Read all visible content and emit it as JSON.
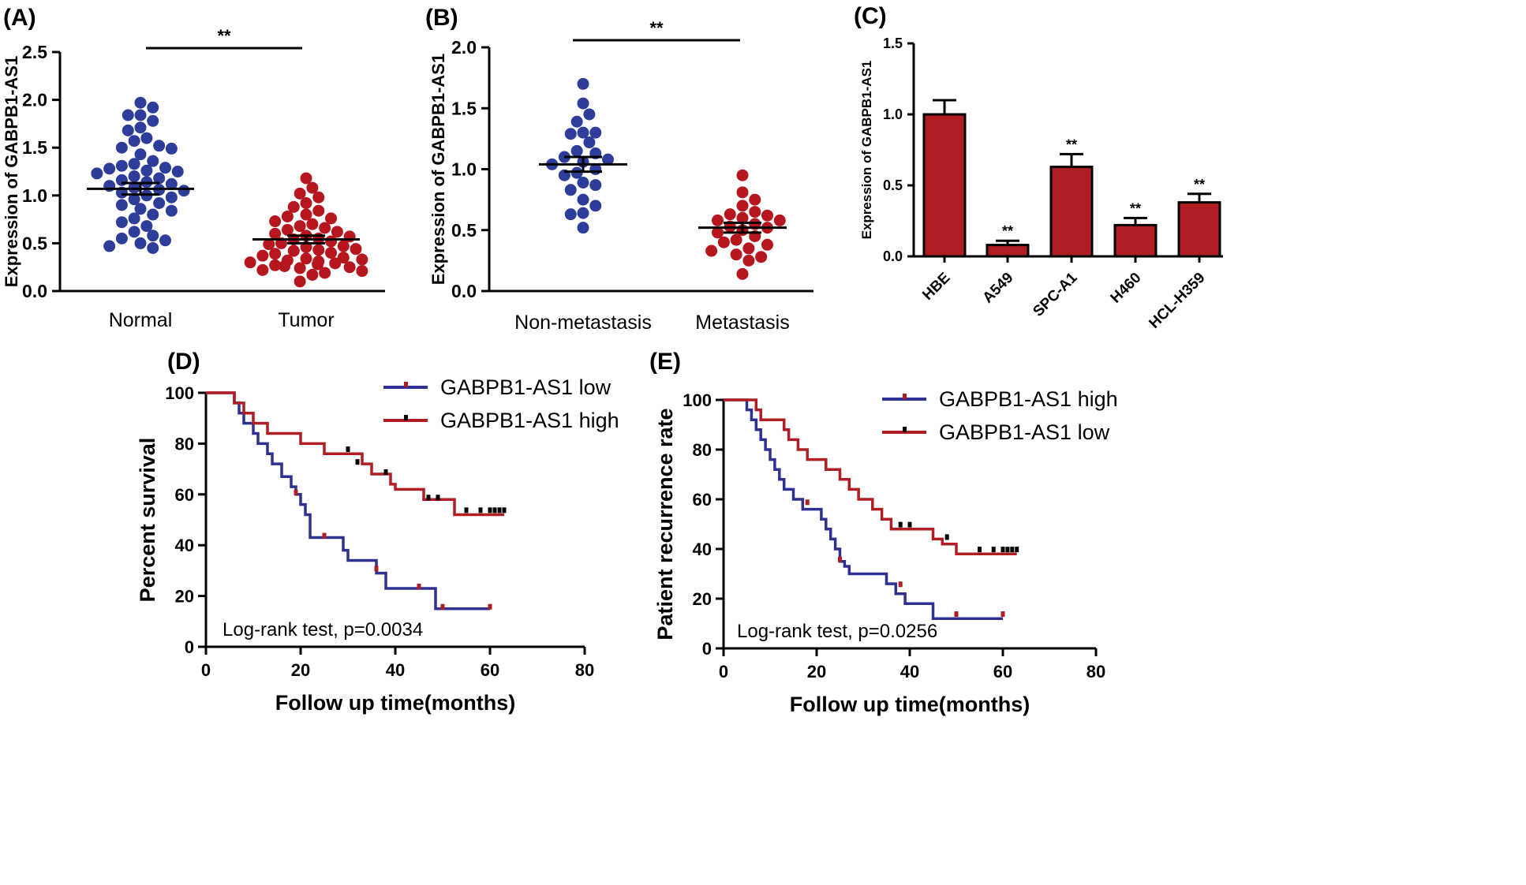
{
  "colors": {
    "blue": "#2e3192",
    "red": "#b01e23",
    "dot_blue": "#2e3d9a",
    "dot_red": "#b6161d"
  },
  "chart_data": [
    {
      "type": "scatter",
      "panel_label": "(A)",
      "ylabel": "Expression of GABPB1-AS1",
      "ylim": [
        0,
        2.5
      ],
      "yticks": [
        "0.0",
        "0.5",
        "1.0",
        "1.5",
        "2.0",
        "2.5"
      ],
      "categories": [
        "Normal",
        "Tumor"
      ],
      "significance": "**",
      "groups": [
        {
          "name": "Normal",
          "mean": 1.07,
          "sem": 0.06,
          "values": [
            1.97,
            1.92,
            1.84,
            1.84,
            1.78,
            1.71,
            1.68,
            1.6,
            1.57,
            1.52,
            1.5,
            1.49,
            1.43,
            1.36,
            1.33,
            1.31,
            1.29,
            1.28,
            1.26,
            1.25,
            1.23,
            1.2,
            1.18,
            1.16,
            1.14,
            1.12,
            1.1,
            1.08,
            1.06,
            1.05,
            1.03,
            1.0,
            0.98,
            0.96,
            0.92,
            0.9,
            0.86,
            0.84,
            0.8,
            0.76,
            0.72,
            0.68,
            0.62,
            0.58,
            0.55,
            0.53,
            0.5,
            0.47,
            0.45
          ]
        },
        {
          "name": "Tumor",
          "mean": 0.54,
          "sem": 0.04,
          "values": [
            1.18,
            1.08,
            1.02,
            0.98,
            0.92,
            0.88,
            0.84,
            0.8,
            0.78,
            0.76,
            0.73,
            0.7,
            0.68,
            0.66,
            0.64,
            0.62,
            0.6,
            0.58,
            0.57,
            0.55,
            0.54,
            0.52,
            0.5,
            0.49,
            0.47,
            0.46,
            0.44,
            0.43,
            0.42,
            0.4,
            0.39,
            0.37,
            0.35,
            0.34,
            0.33,
            0.32,
            0.31,
            0.3,
            0.29,
            0.28,
            0.27,
            0.26,
            0.25,
            0.24,
            0.22,
            0.21,
            0.19,
            0.17,
            0.1
          ]
        }
      ]
    },
    {
      "type": "scatter",
      "panel_label": "(B)",
      "ylabel": "Expression of GABPB1-AS1",
      "ylim": [
        0,
        2.0
      ],
      "yticks": [
        "0.0",
        "0.5",
        "1.0",
        "1.5",
        "2.0"
      ],
      "categories": [
        "Non-metastasis",
        "Metastasis"
      ],
      "significance": "**",
      "groups": [
        {
          "name": "Non-metastasis",
          "mean": 1.04,
          "sem": 0.06,
          "values": [
            1.7,
            1.54,
            1.45,
            1.39,
            1.3,
            1.3,
            1.29,
            1.22,
            1.15,
            1.13,
            1.1,
            1.08,
            1.06,
            1.04,
            1.0,
            0.97,
            0.95,
            0.89,
            0.87,
            0.83,
            0.75,
            0.7,
            0.64,
            0.63,
            0.52
          ]
        },
        {
          "name": "Metastasis",
          "mean": 0.52,
          "sem": 0.04,
          "values": [
            0.95,
            0.81,
            0.75,
            0.7,
            0.65,
            0.63,
            0.62,
            0.6,
            0.58,
            0.58,
            0.55,
            0.53,
            0.52,
            0.5,
            0.48,
            0.45,
            0.42,
            0.4,
            0.38,
            0.35,
            0.33,
            0.3,
            0.28,
            0.25,
            0.14
          ]
        }
      ]
    },
    {
      "type": "bar",
      "panel_label": "(C)",
      "ylabel": "Expression of GABPB1-AS1",
      "ylim": [
        0,
        1.5
      ],
      "yticks": [
        "0.0",
        "0.5",
        "1.0",
        "1.5"
      ],
      "categories": [
        "HBE",
        "A549",
        "SPC-A1",
        "H460",
        "HCL-H359"
      ],
      "values": [
        1.0,
        0.08,
        0.63,
        0.22,
        0.38
      ],
      "errors": [
        0.1,
        0.03,
        0.09,
        0.05,
        0.06
      ],
      "significance": [
        "",
        "**",
        "**",
        "**",
        "**"
      ]
    },
    {
      "type": "line",
      "panel_label": "(D)",
      "xlabel": "Follow up time(months)",
      "ylabel": "Percent survival",
      "xlim": [
        0,
        80
      ],
      "ylim": [
        0,
        100
      ],
      "xticks": [
        "0",
        "20",
        "40",
        "60",
        "80"
      ],
      "yticks": [
        "0",
        "20",
        "40",
        "60",
        "80",
        "100"
      ],
      "legend": [
        "GABPB1-AS1 low",
        "GABPB1-AS1 high"
      ],
      "annotation": "Log-rank test, p=0.0034",
      "series": [
        {
          "name": "GABPB1-AS1 low",
          "color": "#2e3192",
          "censor_color": "#b01e23",
          "steps": [
            [
              0,
              100
            ],
            [
              5,
              100
            ],
            [
              6,
              96
            ],
            [
              7,
              92
            ],
            [
              8,
              88
            ],
            [
              10,
              84
            ],
            [
              11,
              80
            ],
            [
              13,
              76
            ],
            [
              14,
              72
            ],
            [
              16,
              67
            ],
            [
              18,
              63
            ],
            [
              19,
              60
            ],
            [
              20,
              56
            ],
            [
              21,
              52
            ],
            [
              22,
              43
            ],
            [
              27,
              43
            ],
            [
              29,
              38
            ],
            [
              30,
              34
            ],
            [
              35,
              34
            ],
            [
              36,
              29
            ],
            [
              38,
              23
            ],
            [
              48,
              23
            ],
            [
              48.5,
              15
            ],
            [
              60,
              15
            ]
          ],
          "censors": [
            [
              19,
              60
            ],
            [
              25,
              43
            ],
            [
              36,
              30
            ],
            [
              45,
              23
            ],
            [
              50,
              15
            ],
            [
              60,
              15
            ]
          ]
        },
        {
          "name": "GABPB1-AS1 high",
          "color": "#b01e23",
          "censor_color": "#000000",
          "steps": [
            [
              0,
              100
            ],
            [
              5,
              100
            ],
            [
              6,
              96
            ],
            [
              8,
              92
            ],
            [
              10,
              88
            ],
            [
              13,
              84
            ],
            [
              19,
              84
            ],
            [
              20,
              80
            ],
            [
              24,
              80
            ],
            [
              25,
              76
            ],
            [
              32,
              76
            ],
            [
              33,
              72
            ],
            [
              35,
              68
            ],
            [
              39,
              64
            ],
            [
              40,
              62
            ],
            [
              45,
              62
            ],
            [
              46,
              58
            ],
            [
              52,
              58
            ],
            [
              52.5,
              52
            ],
            [
              63,
              52
            ]
          ],
          "censors": [
            [
              30,
              77
            ],
            [
              32,
              72
            ],
            [
              38,
              68
            ],
            [
              47,
              58
            ],
            [
              49,
              58
            ],
            [
              55,
              53
            ],
            [
              58,
              53
            ],
            [
              60,
              53
            ],
            [
              61,
              53
            ],
            [
              62,
              53
            ],
            [
              63,
              53
            ]
          ]
        }
      ]
    },
    {
      "type": "line",
      "panel_label": "(E)",
      "xlabel": "Follow up time(months)",
      "ylabel": "Patient recurrence rate",
      "xlim": [
        0,
        80
      ],
      "ylim": [
        0,
        100
      ],
      "xticks": [
        "0",
        "20",
        "40",
        "60",
        "80"
      ],
      "yticks": [
        "0",
        "20",
        "40",
        "60",
        "80",
        "100"
      ],
      "legend": [
        "GABPB1-AS1 high",
        "GABPB1-AS1 low"
      ],
      "annotation": "Log-rank test, p=0.0256",
      "series": [
        {
          "name": "GABPB1-AS1 high",
          "color": "#2e3192",
          "censor_color": "#b01e23",
          "steps": [
            [
              0,
              100
            ],
            [
              4,
              100
            ],
            [
              5,
              96
            ],
            [
              6,
              92
            ],
            [
              7,
              88
            ],
            [
              8,
              84
            ],
            [
              9,
              80
            ],
            [
              10,
              76
            ],
            [
              11,
              72
            ],
            [
              12,
              68
            ],
            [
              13,
              64
            ],
            [
              15,
              60
            ],
            [
              17,
              56
            ],
            [
              20,
              56
            ],
            [
              21,
              52
            ],
            [
              22,
              48
            ],
            [
              23,
              44
            ],
            [
              24,
              40
            ],
            [
              25,
              35
            ],
            [
              26,
              33
            ],
            [
              27,
              30
            ],
            [
              34,
              30
            ],
            [
              35,
              26
            ],
            [
              37,
              22
            ],
            [
              39,
              18
            ],
            [
              44,
              18
            ],
            [
              45,
              12
            ],
            [
              60,
              12
            ]
          ],
          "censors": [
            [
              18,
              58
            ],
            [
              25,
              35
            ],
            [
              38,
              25
            ],
            [
              50,
              13
            ],
            [
              60,
              13
            ]
          ]
        },
        {
          "name": "GABPB1-AS1 low",
          "color": "#b01e23",
          "censor_color": "#000000",
          "steps": [
            [
              0,
              100
            ],
            [
              6,
              100
            ],
            [
              7,
              96
            ],
            [
              8,
              92
            ],
            [
              12,
              92
            ],
            [
              13,
              88
            ],
            [
              14,
              84
            ],
            [
              16,
              80
            ],
            [
              18,
              76
            ],
            [
              22,
              72
            ],
            [
              25,
              68
            ],
            [
              27,
              64
            ],
            [
              29,
              60
            ],
            [
              32,
              56
            ],
            [
              34,
              52
            ],
            [
              36,
              48
            ],
            [
              44,
              48
            ],
            [
              45,
              44
            ],
            [
              47,
              42
            ],
            [
              49,
              42
            ],
            [
              50,
              38
            ],
            [
              63,
              38
            ]
          ],
          "censors": [
            [
              38,
              49
            ],
            [
              40,
              49
            ],
            [
              48,
              44
            ],
            [
              55,
              39
            ],
            [
              58,
              39
            ],
            [
              60,
              39
            ],
            [
              61,
              39
            ],
            [
              62,
              39
            ],
            [
              63,
              39
            ]
          ]
        }
      ]
    }
  ]
}
